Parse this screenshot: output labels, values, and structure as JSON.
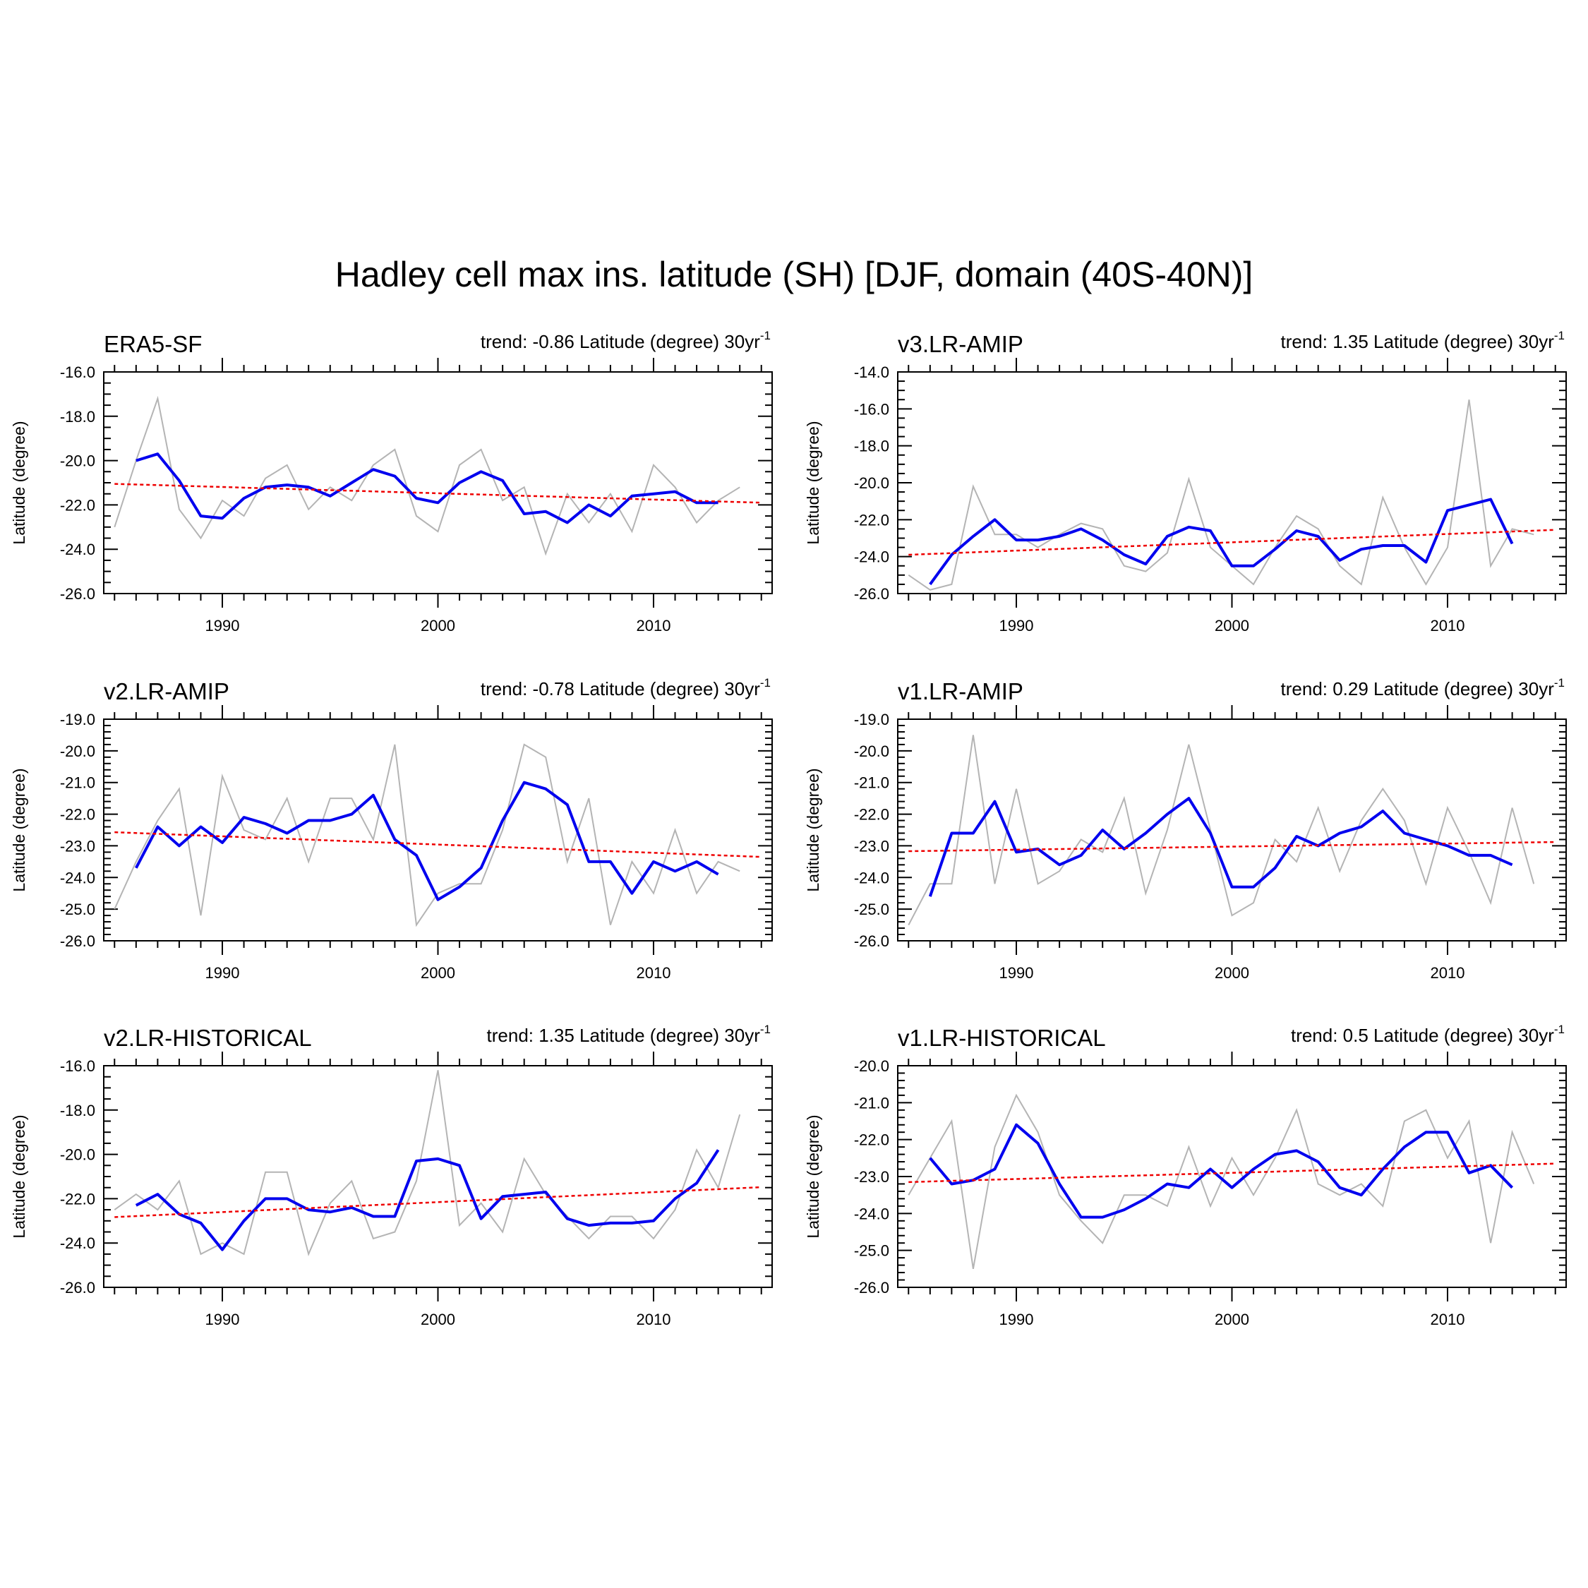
{
  "figure": {
    "title": "Hadley cell max ins. latitude (SH) [DJF, domain (40S-40N)]",
    "colors": {
      "annual": "#b4b4b4",
      "smooth": "#0000ee",
      "trend": "#ee0000",
      "axis": "#000000"
    }
  },
  "chart_data": [
    {
      "type": "line",
      "title": "ERA5-SF",
      "trend_label": "trend: -0.86 Latitude (degree) 30yr",
      "trend_unit_sup": "-1",
      "ylabel": "Latitude (degree)",
      "xlabel": "",
      "xlim": [
        1984.5,
        2015.5
      ],
      "ylim": [
        -26,
        -16
      ],
      "y_ticks": [
        -26,
        -24,
        -22,
        -20,
        -18,
        -16
      ],
      "y_tick_labels": [
        "-26.0",
        "-24.0",
        "-22.0",
        "-20.0",
        "-18.0",
        "-16.0"
      ],
      "y_minor_step": 0.5,
      "x_ticks": [
        1990,
        2000,
        2010
      ],
      "x_tick_labels": [
        "1990",
        "2000",
        "2010"
      ],
      "series": [
        {
          "name": "annual",
          "x_start": 1985,
          "values": [
            -23.0,
            -20.0,
            -17.2,
            -22.2,
            -23.5,
            -21.8,
            -22.5,
            -20.8,
            -20.2,
            -22.2,
            -21.2,
            -21.8,
            -20.2,
            -19.5,
            -22.5,
            -23.2,
            -20.2,
            -19.5,
            -21.8,
            -21.2,
            -24.2,
            -21.5,
            -22.8,
            -21.5,
            -23.2,
            -20.2,
            -21.2,
            -22.8,
            -21.8,
            -21.2
          ]
        },
        {
          "name": "smoothed",
          "x_start": 1986,
          "values": [
            -20.0,
            -19.7,
            -20.9,
            -22.5,
            -22.6,
            -21.7,
            -21.2,
            -21.1,
            -21.2,
            -21.6,
            -21.0,
            -20.4,
            -20.7,
            -21.7,
            -21.9,
            -21.0,
            -20.5,
            -20.9,
            -22.4,
            -22.3,
            -22.8,
            -22.0,
            -22.5,
            -21.6,
            -21.5,
            -21.4,
            -21.9,
            -21.9
          ]
        },
        {
          "name": "trend",
          "x": [
            1985,
            2015
          ],
          "values": [
            -21.05,
            -21.9
          ]
        }
      ]
    },
    {
      "type": "line",
      "title": "v3.LR-AMIP",
      "trend_label": "trend: 1.35 Latitude (degree) 30yr",
      "trend_unit_sup": "-1",
      "ylabel": "Latitude (degree)",
      "xlabel": "",
      "xlim": [
        1984.5,
        2015.5
      ],
      "ylim": [
        -26,
        -14
      ],
      "y_ticks": [
        -26,
        -24,
        -22,
        -20,
        -18,
        -16,
        -14
      ],
      "y_tick_labels": [
        "-26.0",
        "-24.0",
        "-22.0",
        "-20.0",
        "-18.0",
        "-16.0",
        "-14.0"
      ],
      "y_minor_step": 0.5,
      "x_ticks": [
        1990,
        2000,
        2010
      ],
      "x_tick_labels": [
        "1990",
        "2000",
        "2010"
      ],
      "series": [
        {
          "name": "annual",
          "x_start": 1985,
          "values": [
            -25.0,
            -25.8,
            -25.5,
            -20.2,
            -22.8,
            -22.8,
            -23.5,
            -22.8,
            -22.2,
            -22.5,
            -24.5,
            -24.8,
            -23.8,
            -19.8,
            -23.5,
            -24.5,
            -25.5,
            -23.5,
            -21.8,
            -22.5,
            -24.5,
            -25.5,
            -20.8,
            -23.5,
            -25.5,
            -23.5,
            -15.5,
            -24.5,
            -22.5,
            -22.8
          ]
        },
        {
          "name": "smoothed",
          "x_start": 1986,
          "values": [
            -25.5,
            -23.9,
            -22.9,
            -22.0,
            -23.1,
            -23.1,
            -22.9,
            -22.5,
            -23.1,
            -23.9,
            -24.4,
            -22.9,
            -22.4,
            -22.6,
            -24.5,
            -24.5,
            -23.6,
            -22.6,
            -22.9,
            -24.2,
            -23.6,
            -23.4,
            -23.4,
            -24.3,
            -21.5,
            -21.2,
            -20.9,
            -23.3
          ]
        },
        {
          "name": "trend",
          "x": [
            1985,
            2015
          ],
          "values": [
            -23.9,
            -22.55
          ]
        }
      ]
    },
    {
      "type": "line",
      "title": "v2.LR-AMIP",
      "trend_label": "trend: -0.78 Latitude (degree) 30yr",
      "trend_unit_sup": "-1",
      "ylabel": "Latitude (degree)",
      "xlabel": "",
      "xlim": [
        1984.5,
        2015.5
      ],
      "ylim": [
        -26,
        -19
      ],
      "y_ticks": [
        -26,
        -25,
        -24,
        -23,
        -22,
        -21,
        -20,
        -19
      ],
      "y_tick_labels": [
        "-26.0",
        "-25.0",
        "-24.0",
        "-23.0",
        "-22.0",
        "-21.0",
        "-20.0",
        "-19.0"
      ],
      "y_minor_step": 0.2,
      "x_ticks": [
        1990,
        2000,
        2010
      ],
      "x_tick_labels": [
        "1990",
        "2000",
        "2010"
      ],
      "series": [
        {
          "name": "annual",
          "x_start": 1985,
          "values": [
            -25.0,
            -23.5,
            -22.2,
            -21.2,
            -25.2,
            -20.8,
            -22.5,
            -22.8,
            -21.5,
            -23.5,
            -21.5,
            -21.5,
            -22.8,
            -19.8,
            -25.5,
            -24.5,
            -24.2,
            -24.2,
            -22.5,
            -19.8,
            -20.2,
            -23.5,
            -21.5,
            -25.5,
            -23.5,
            -24.5,
            -22.5,
            -24.5,
            -23.5,
            -23.8
          ]
        },
        {
          "name": "smoothed",
          "x_start": 1986,
          "values": [
            -23.7,
            -22.4,
            -23.0,
            -22.4,
            -22.9,
            -22.1,
            -22.3,
            -22.6,
            -22.2,
            -22.2,
            -22.0,
            -21.4,
            -22.8,
            -23.3,
            -24.7,
            -24.3,
            -23.7,
            -22.2,
            -21.0,
            -21.2,
            -21.7,
            -23.5,
            -23.5,
            -24.5,
            -23.5,
            -23.8,
            -23.5,
            -23.9
          ]
        },
        {
          "name": "trend",
          "x": [
            1985,
            2015
          ],
          "values": [
            -22.57,
            -23.35
          ]
        }
      ]
    },
    {
      "type": "line",
      "title": "v1.LR-AMIP",
      "trend_label": "trend: 0.29 Latitude (degree) 30yr",
      "trend_unit_sup": "-1",
      "ylabel": "Latitude (degree)",
      "xlabel": "",
      "xlim": [
        1984.5,
        2015.5
      ],
      "ylim": [
        -26,
        -19
      ],
      "y_ticks": [
        -26,
        -25,
        -24,
        -23,
        -22,
        -21,
        -20,
        -19
      ],
      "y_tick_labels": [
        "-26.0",
        "-25.0",
        "-24.0",
        "-23.0",
        "-22.0",
        "-21.0",
        "-20.0",
        "-19.0"
      ],
      "y_minor_step": 0.2,
      "x_ticks": [
        1990,
        2000,
        2010
      ],
      "x_tick_labels": [
        "1990",
        "2000",
        "2010"
      ],
      "series": [
        {
          "name": "annual",
          "x_start": 1985,
          "values": [
            -25.5,
            -24.2,
            -24.2,
            -19.5,
            -24.2,
            -21.2,
            -24.2,
            -23.8,
            -22.8,
            -23.2,
            -21.5,
            -24.5,
            -22.5,
            -19.8,
            -22.5,
            -25.2,
            -24.8,
            -22.8,
            -23.5,
            -21.8,
            -23.8,
            -22.2,
            -21.2,
            -22.2,
            -24.2,
            -21.8,
            -23.2,
            -24.8,
            -21.8,
            -24.2
          ]
        },
        {
          "name": "smoothed",
          "x_start": 1986,
          "values": [
            -24.6,
            -22.6,
            -22.6,
            -21.6,
            -23.2,
            -23.1,
            -23.6,
            -23.3,
            -22.5,
            -23.1,
            -22.6,
            -22.0,
            -21.5,
            -22.6,
            -24.3,
            -24.3,
            -23.7,
            -22.7,
            -23.0,
            -22.6,
            -22.4,
            -21.9,
            -22.6,
            -22.8,
            -23.0,
            -23.3,
            -23.3,
            -23.6
          ]
        },
        {
          "name": "trend",
          "x": [
            1985,
            2015
          ],
          "values": [
            -23.17,
            -22.88
          ]
        }
      ]
    },
    {
      "type": "line",
      "title": "v2.LR-HISTORICAL",
      "trend_label": "trend: 1.35 Latitude (degree) 30yr",
      "trend_unit_sup": "-1",
      "ylabel": "Latitude (degree)",
      "xlabel": "",
      "xlim": [
        1984.5,
        2015.5
      ],
      "ylim": [
        -26,
        -16
      ],
      "y_ticks": [
        -26,
        -24,
        -22,
        -20,
        -18,
        -16
      ],
      "y_tick_labels": [
        "-26.0",
        "-24.0",
        "-22.0",
        "-20.0",
        "-18.0",
        "-16.0"
      ],
      "y_minor_step": 0.5,
      "x_ticks": [
        1990,
        2000,
        2010
      ],
      "x_tick_labels": [
        "1990",
        "2000",
        "2010"
      ],
      "series": [
        {
          "name": "annual",
          "x_start": 1985,
          "values": [
            -22.5,
            -21.8,
            -22.5,
            -21.2,
            -24.5,
            -24.0,
            -24.5,
            -20.8,
            -20.8,
            -24.5,
            -22.2,
            -21.2,
            -23.8,
            -23.5,
            -21.2,
            -16.2,
            -23.2,
            -22.2,
            -23.5,
            -20.2,
            -21.8,
            -22.8,
            -23.8,
            -22.8,
            -22.8,
            -23.8,
            -22.5,
            -19.8,
            -21.5,
            -18.2
          ]
        },
        {
          "name": "smoothed",
          "x_start": 1986,
          "values": [
            -22.3,
            -21.8,
            -22.7,
            -23.1,
            -24.3,
            -23.0,
            -22.0,
            -22.0,
            -22.5,
            -22.6,
            -22.4,
            -22.8,
            -22.8,
            -20.3,
            -20.2,
            -20.5,
            -22.9,
            -21.9,
            -21.8,
            -21.7,
            -22.9,
            -23.2,
            -23.1,
            -23.1,
            -23.0,
            -22.0,
            -21.3,
            -19.8
          ]
        },
        {
          "name": "trend",
          "x": [
            1985,
            2015
          ],
          "values": [
            -22.83,
            -21.48
          ]
        }
      ]
    },
    {
      "type": "line",
      "title": "v1.LR-HISTORICAL",
      "trend_label": "trend: 0.5 Latitude (degree) 30yr",
      "trend_unit_sup": "-1",
      "ylabel": "Latitude (degree)",
      "xlabel": "",
      "xlim": [
        1984.5,
        2015.5
      ],
      "ylim": [
        -26,
        -20
      ],
      "y_ticks": [
        -26,
        -25,
        -24,
        -23,
        -22,
        -21,
        -20
      ],
      "y_tick_labels": [
        "-26.0",
        "-25.0",
        "-24.0",
        "-23.0",
        "-22.0",
        "-21.0",
        "-20.0"
      ],
      "y_minor_step": 0.2,
      "x_ticks": [
        1990,
        2000,
        2010
      ],
      "x_tick_labels": [
        "1990",
        "2000",
        "2010"
      ],
      "series": [
        {
          "name": "annual",
          "x_start": 1985,
          "values": [
            -23.5,
            -22.5,
            -21.5,
            -25.5,
            -22.2,
            -20.8,
            -21.8,
            -23.5,
            -24.2,
            -24.8,
            -23.5,
            -23.5,
            -23.8,
            -22.2,
            -23.8,
            -22.5,
            -23.5,
            -22.5,
            -21.2,
            -23.2,
            -23.5,
            -23.2,
            -23.8,
            -21.5,
            -21.2,
            -22.5,
            -21.5,
            -24.8,
            -21.8,
            -23.2
          ]
        },
        {
          "name": "smoothed",
          "x_start": 1986,
          "values": [
            -22.5,
            -23.2,
            -23.1,
            -22.8,
            -21.6,
            -22.1,
            -23.2,
            -24.1,
            -24.1,
            -23.9,
            -23.6,
            -23.2,
            -23.3,
            -22.8,
            -23.3,
            -22.8,
            -22.4,
            -22.3,
            -22.6,
            -23.3,
            -23.5,
            -22.8,
            -22.2,
            -21.8,
            -21.8,
            -22.9,
            -22.7,
            -23.3
          ]
        },
        {
          "name": "trend",
          "x": [
            1985,
            2015
          ],
          "values": [
            -23.15,
            -22.65
          ]
        }
      ]
    }
  ]
}
